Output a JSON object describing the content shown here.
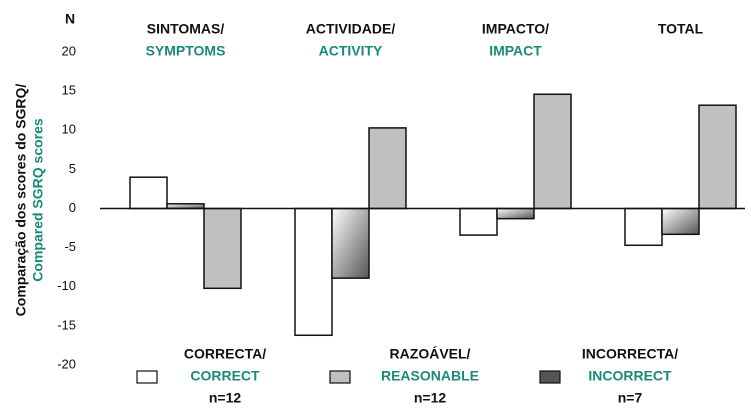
{
  "chart_data": {
    "type": "bar",
    "y_unit_label": "N",
    "ylabel": "Comparação dos scores do SGRQ/",
    "ylabel_en": "Compared SGRQ scores",
    "categories": [
      "SINTOMAS/",
      "ACTIVIDADE/",
      "IMPACTO/",
      "TOTAL"
    ],
    "categories_en": [
      "SYMPTOMS",
      "ACTIVITY",
      "IMPACT",
      null
    ],
    "ylim": [
      -20,
      20
    ],
    "yticks": [
      20,
      15,
      10,
      5,
      0,
      -5,
      -10,
      -15,
      -20
    ],
    "grid": false,
    "series": [
      {
        "name": "CORRECTA/",
        "name_en": "CORRECT",
        "n": "n=12",
        "color": "#ffffff",
        "values": [
          4.0,
          -16.2,
          -3.4,
          -4.7
        ]
      },
      {
        "name": "INCORRECTA/",
        "name_en": "INCORRECT",
        "n": "n=7",
        "color": "#555555",
        "gradient": true,
        "values": [
          0.6,
          -8.9,
          -1.3,
          -3.3
        ]
      },
      {
        "name": "RAZOÁVEL/",
        "name_en": "REASONABLE",
        "n": "n=12",
        "color": "#c0c0c0",
        "values": [
          -10.2,
          10.3,
          14.6,
          13.2
        ]
      }
    ]
  }
}
